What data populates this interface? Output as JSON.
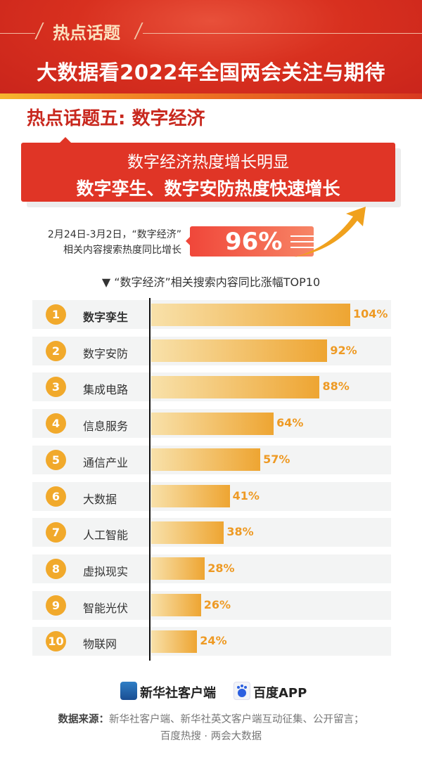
{
  "header": {
    "kicker": "热点话题",
    "title": "大数据看2022年全国两会关注与期待"
  },
  "topic": "热点话题五: 数字经济",
  "callout": {
    "line1": "数字经济热度增长明显",
    "line2": "数字孪生、数字安防热度快速增长"
  },
  "stat": {
    "line1": "2月24日-3月2日，“数字经济”",
    "line2": "相关内容搜索热度同比增长",
    "value": "96%"
  },
  "colors": {
    "primary_red": "#e03526",
    "bar_end": "#eea532",
    "rank_circle": "#f1a92b"
  },
  "chart_data": {
    "type": "bar",
    "orientation": "horizontal",
    "title": "▼ “数字经济”相关搜索内容同比涨幅TOP10",
    "ranks": [
      "1",
      "2",
      "3",
      "4",
      "5",
      "6",
      "7",
      "8",
      "9",
      "10"
    ],
    "categories": [
      "数字孪生",
      "数字安防",
      "集成电路",
      "信息服务",
      "通信产业",
      "大数据",
      "人工智能",
      "虚拟现实",
      "智能光伏",
      "物联网"
    ],
    "values": [
      104,
      92,
      88,
      64,
      57,
      41,
      38,
      28,
      26,
      24
    ],
    "labels": [
      "104%",
      "92%",
      "88%",
      "64%",
      "57%",
      "41%",
      "38%",
      "28%",
      "26%",
      "24%"
    ],
    "unit": "%"
  },
  "footer": {
    "logo1": "新华社客户端",
    "logo2": "百度APP",
    "source_label": "数据来源：",
    "source_line1": "新华社客户端、新华社英文客户端互动征集、公开留言；",
    "source_line2": "百度热搜 · 两会大数据"
  }
}
